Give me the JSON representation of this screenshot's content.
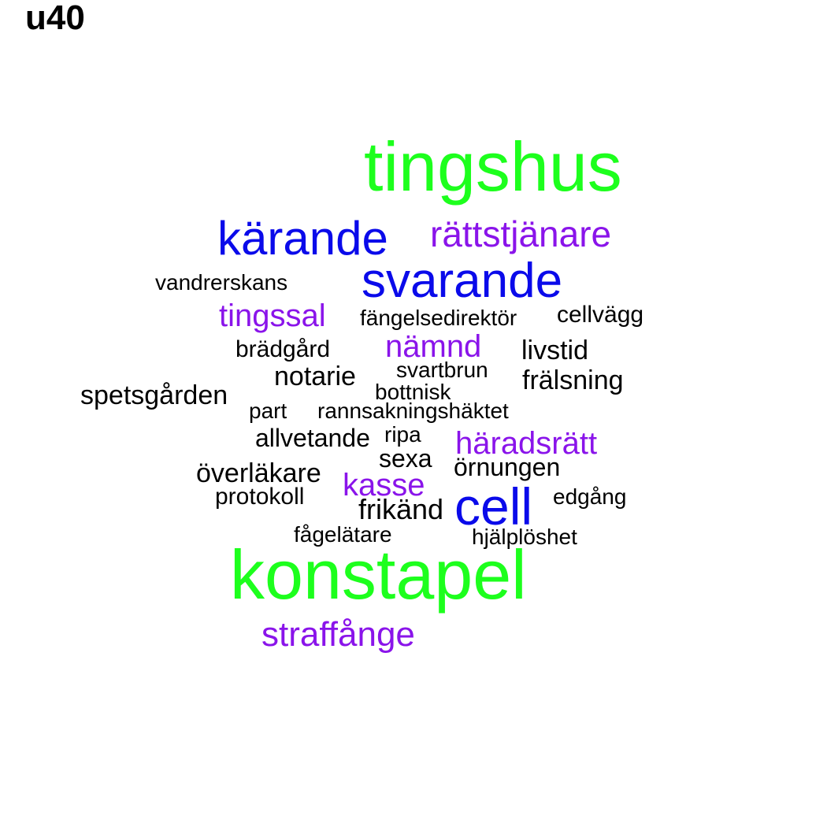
{
  "title": "u40",
  "colors": {
    "green": "#1dff1d",
    "blue": "#0a0aea",
    "purple": "#8a14ea",
    "black": "#000000"
  },
  "words": [
    {
      "text": "tingshus",
      "color": "green"
    },
    {
      "text": "konstapel",
      "color": "green"
    },
    {
      "text": "kärande",
      "color": "blue"
    },
    {
      "text": "svarande",
      "color": "blue"
    },
    {
      "text": "cell",
      "color": "blue"
    },
    {
      "text": "rättstjänare",
      "color": "purple"
    },
    {
      "text": "tingssal",
      "color": "purple"
    },
    {
      "text": "nämnd",
      "color": "purple"
    },
    {
      "text": "häradsrätt",
      "color": "purple"
    },
    {
      "text": "kasse",
      "color": "purple"
    },
    {
      "text": "straffånge",
      "color": "purple"
    },
    {
      "text": "vandrerskans",
      "color": "black"
    },
    {
      "text": "fängelsedirektör",
      "color": "black"
    },
    {
      "text": "cellvägg",
      "color": "black"
    },
    {
      "text": "brädgård",
      "color": "black"
    },
    {
      "text": "livstid",
      "color": "black"
    },
    {
      "text": "notarie",
      "color": "black"
    },
    {
      "text": "svartbrun",
      "color": "black"
    },
    {
      "text": "frälsning",
      "color": "black"
    },
    {
      "text": "spetsgården",
      "color": "black"
    },
    {
      "text": "bottnisk",
      "color": "black"
    },
    {
      "text": "part",
      "color": "black"
    },
    {
      "text": "rannsakningshäktet",
      "color": "black"
    },
    {
      "text": "allvetande",
      "color": "black"
    },
    {
      "text": "ripa",
      "color": "black"
    },
    {
      "text": "sexa",
      "color": "black"
    },
    {
      "text": "överläkare",
      "color": "black"
    },
    {
      "text": "örnungen",
      "color": "black"
    },
    {
      "text": "protokoll",
      "color": "black"
    },
    {
      "text": "frikänd",
      "color": "black"
    },
    {
      "text": "edgång",
      "color": "black"
    },
    {
      "text": "fågelätare",
      "color": "black"
    },
    {
      "text": "hjälplöshet",
      "color": "black"
    }
  ]
}
